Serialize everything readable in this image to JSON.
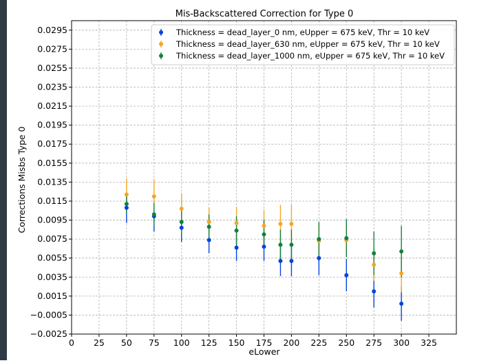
{
  "chart_data": {
    "type": "scatter",
    "title": "Mis-Backscattered Correction for Type 0",
    "xlabel": "eLower",
    "ylabel": "Corrections Misbs Type 0",
    "xlim": [
      0,
      350
    ],
    "ylim": [
      -0.0025,
      0.0305
    ],
    "x_ticks": [
      0,
      25,
      50,
      75,
      100,
      125,
      150,
      175,
      200,
      225,
      250,
      275,
      300,
      325
    ],
    "y_ticks": [
      -0.0025,
      -0.0005,
      0.0015,
      0.0035,
      0.0055,
      0.0075,
      0.0095,
      0.0115,
      0.0135,
      0.0155,
      0.0175,
      0.0195,
      0.0215,
      0.0235,
      0.0255,
      0.0275,
      0.0295
    ],
    "x_tick_labels": [
      "0",
      "25",
      "50",
      "75",
      "100",
      "125",
      "150",
      "175",
      "200",
      "225",
      "250",
      "275",
      "300",
      "325"
    ],
    "y_tick_labels": [
      "−0.0025",
      "−0.0005",
      "0.0015",
      "0.0035",
      "0.0055",
      "0.0075",
      "0.0095",
      "0.0115",
      "0.0135",
      "0.0155",
      "0.0175",
      "0.0195",
      "0.0215",
      "0.0235",
      "0.0255",
      "0.0275",
      "0.0295"
    ],
    "grid": true,
    "legend_position": "top-right",
    "series": [
      {
        "name": "Thickness = dead_layer_0 nm, eUpper = 675 keV, Thr = 10 keV",
        "color": "#0343df",
        "x": [
          50,
          75,
          100,
          125,
          150,
          175,
          190,
          200,
          225,
          250,
          275,
          300
        ],
        "y": [
          0.0108,
          0.0099,
          0.0087,
          0.0074,
          0.0066,
          0.0067,
          0.0052,
          0.0052,
          0.0055,
          0.0037,
          0.002,
          0.0007
        ],
        "err": [
          0.0016,
          0.0016,
          0.0015,
          0.0014,
          0.0014,
          0.0015,
          0.0016,
          0.0016,
          0.0018,
          0.0017,
          0.0017,
          0.0018
        ]
      },
      {
        "name": "Thickness = dead_layer_630 nm, eUpper = 675 keV, Thr = 10 keV",
        "color": "#f5a623",
        "x": [
          50,
          75,
          100,
          125,
          150,
          175,
          190,
          200,
          225,
          250,
          275,
          300
        ],
        "y": [
          0.0122,
          0.012,
          0.0107,
          0.0093,
          0.0092,
          0.0089,
          0.0091,
          0.0091,
          0.0073,
          0.0074,
          0.0048,
          0.0039
        ],
        "err": [
          0.0017,
          0.0018,
          0.0016,
          0.0015,
          0.0017,
          0.0017,
          0.002,
          0.002,
          0.0017,
          0.0018,
          0.0017,
          0.002
        ]
      },
      {
        "name": "Thickness = dead_layer_1000 nm, eUpper = 675 keV, Thr = 10 keV",
        "color": "#15803d",
        "x": [
          50,
          75,
          100,
          125,
          150,
          175,
          190,
          200,
          225,
          250,
          275,
          300
        ],
        "y": [
          0.0112,
          0.0101,
          0.0093,
          0.0088,
          0.0084,
          0.008,
          0.0069,
          0.0069,
          0.0075,
          0.0076,
          0.006,
          0.0062
        ],
        "err": [
          0.001,
          0.0012,
          0.0013,
          0.0013,
          0.0015,
          0.0015,
          0.0016,
          0.0016,
          0.0018,
          0.002,
          0.0023,
          0.0027
        ]
      }
    ]
  }
}
